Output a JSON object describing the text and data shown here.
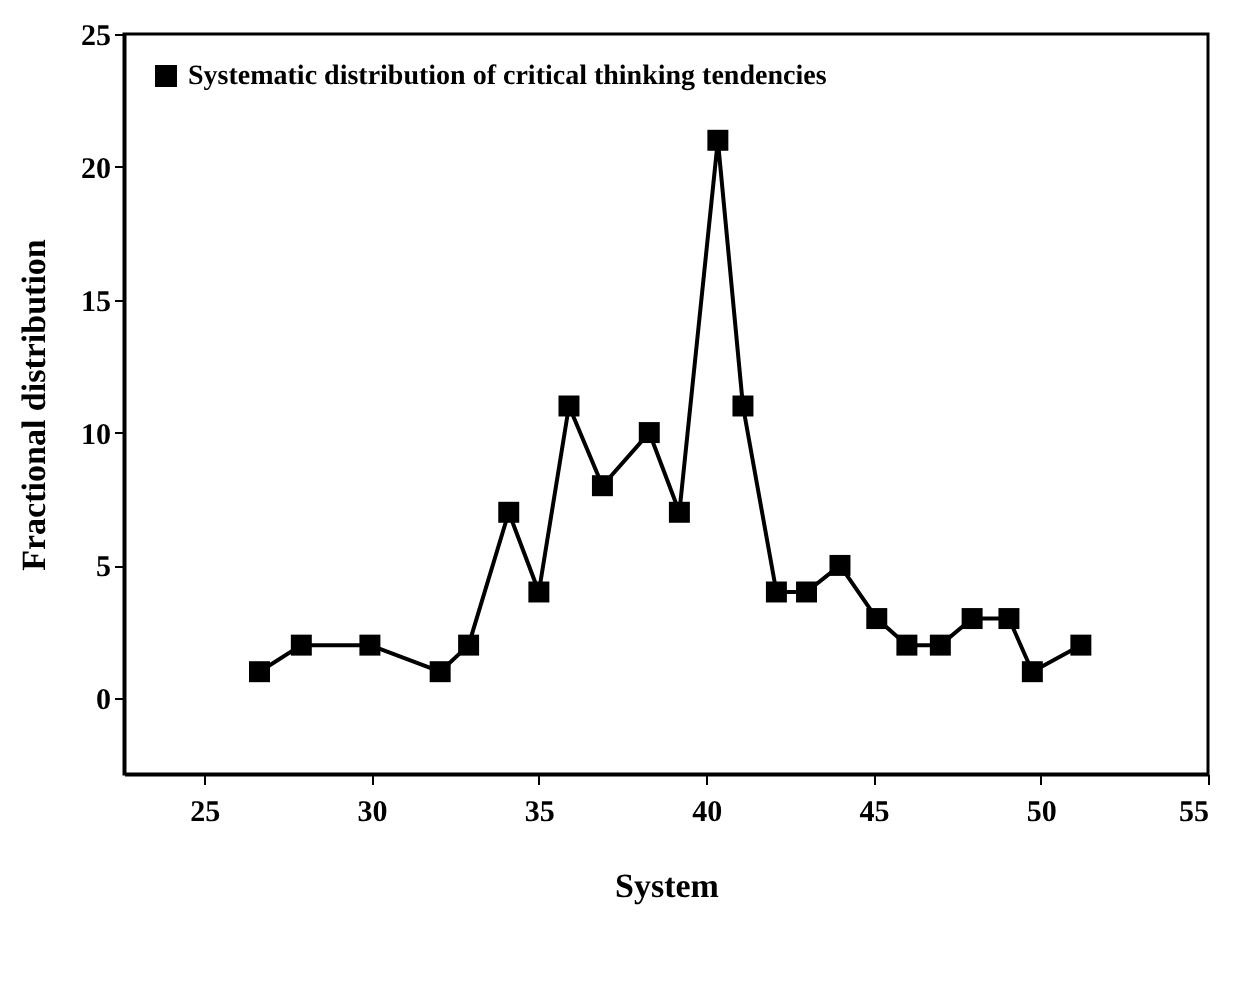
{
  "chart_data": {
    "type": "line",
    "xlabel": "System",
    "ylabel": "Fractional distribution",
    "xlim": [
      22.6,
      55
    ],
    "xticks": [
      25,
      30,
      35,
      40,
      45,
      50,
      55
    ],
    "ylim": [
      -2.85,
      25
    ],
    "yticks": [
      0,
      5,
      10,
      15,
      20,
      25
    ],
    "grid": false,
    "legend": "top left",
    "marker": "square",
    "line_style": "solid",
    "series": [
      {
        "name": "Systematic distribution of critical thinking tendencies",
        "color": "#000000",
        "x": [
          26.65,
          27.9,
          29.95,
          32.05,
          32.9,
          34.1,
          35,
          35.9,
          36.9,
          38.3,
          39.2,
          40.35,
          41.1,
          42.1,
          43,
          44,
          45.1,
          46,
          47,
          47.95,
          49.05,
          49.75,
          51.2
        ],
        "values": [
          1,
          2,
          2,
          1,
          2,
          7,
          4,
          11,
          8,
          10,
          7,
          21,
          11,
          4,
          4,
          5,
          3,
          2,
          2,
          3,
          3,
          1,
          2
        ]
      }
    ]
  }
}
